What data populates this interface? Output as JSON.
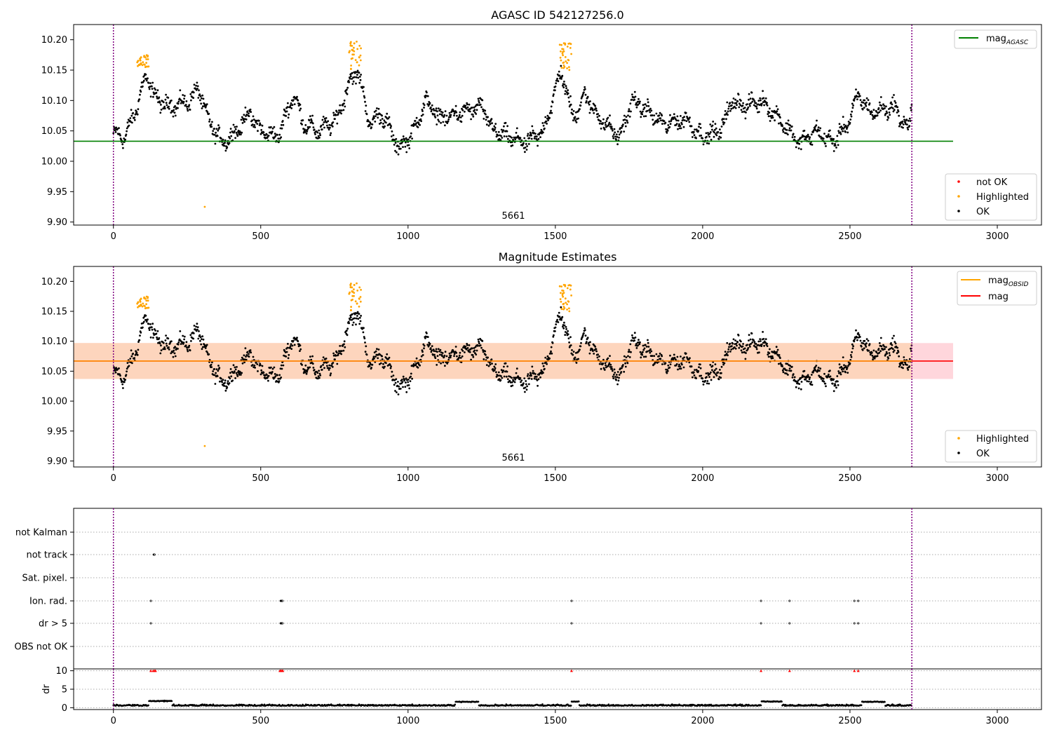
{
  "chart_data": [
    {
      "type": "scatter",
      "title": "AGASC ID 542127256.0",
      "xlim": [
        -135,
        3150
      ],
      "ylim": [
        9.895,
        10.225
      ],
      "xticks": [
        0,
        500,
        1000,
        1500,
        2000,
        2500,
        3000
      ],
      "yticks": [
        9.9,
        9.95,
        10.0,
        10.05,
        10.1,
        10.15,
        10.2
      ],
      "ytick_labels": [
        "9.90",
        "9.95",
        "10.00",
        "10.05",
        "10.10",
        "10.15",
        "10.20"
      ],
      "vlines": [
        0,
        2710
      ],
      "annotation": {
        "text": "5661",
        "x": 1355
      },
      "hline": {
        "name": "mag_AGASC",
        "label_main": "mag",
        "label_sub": "AGASC",
        "y": 10.033,
        "x": [
          -135,
          2850
        ],
        "color": "#008000"
      },
      "legend_lines": [
        {
          "label_main": "mag",
          "label_sub": "AGASC",
          "color": "#008000"
        }
      ],
      "legend_points": [
        {
          "label": "not OK",
          "color": "#ff0000"
        },
        {
          "label": "Highlighted",
          "color": "#ffa500"
        },
        {
          "label": "OK",
          "color": "#000000"
        }
      ],
      "outlier": {
        "x": 310,
        "y": 9.925
      },
      "highlighted_clusters": [
        {
          "x_start": 80,
          "x_end": 120,
          "y_min": 10.155,
          "y_max": 10.175
        },
        {
          "x_start": 800,
          "x_end": 840,
          "y_min": 10.15,
          "y_max": 10.197
        },
        {
          "x_start": 1515,
          "x_end": 1555,
          "y_min": 10.15,
          "y_max": 10.195
        }
      ],
      "series_profile": [
        [
          0,
          10.045
        ],
        [
          40,
          10.04
        ],
        [
          80,
          10.09
        ],
        [
          110,
          10.14
        ],
        [
          150,
          10.1
        ],
        [
          200,
          10.09
        ],
        [
          260,
          10.1
        ],
        [
          290,
          10.12
        ],
        [
          320,
          10.07
        ],
        [
          370,
          10.03
        ],
        [
          420,
          10.05
        ],
        [
          460,
          10.08
        ],
        [
          500,
          10.05
        ],
        [
          560,
          10.04
        ],
        [
          610,
          10.11
        ],
        [
          650,
          10.06
        ],
        [
          700,
          10.05
        ],
        [
          760,
          10.07
        ],
        [
          800,
          10.13
        ],
        [
          830,
          10.15
        ],
        [
          870,
          10.06
        ],
        [
          910,
          10.08
        ],
        [
          970,
          10.02
        ],
        [
          1020,
          10.05
        ],
        [
          1060,
          10.1
        ],
        [
          1110,
          10.07
        ],
        [
          1180,
          10.08
        ],
        [
          1250,
          10.09
        ],
        [
          1290,
          10.05
        ],
        [
          1340,
          10.04
        ],
        [
          1400,
          10.03
        ],
        [
          1460,
          10.05
        ],
        [
          1520,
          10.15
        ],
        [
          1560,
          10.07
        ],
        [
          1600,
          10.11
        ],
        [
          1650,
          10.07
        ],
        [
          1720,
          10.04
        ],
        [
          1760,
          10.1
        ],
        [
          1820,
          10.08
        ],
        [
          1870,
          10.06
        ],
        [
          1940,
          10.07
        ],
        [
          2000,
          10.04
        ],
        [
          2060,
          10.05
        ],
        [
          2100,
          10.1
        ],
        [
          2140,
          10.09
        ],
        [
          2200,
          10.1
        ],
        [
          2260,
          10.07
        ],
        [
          2330,
          10.03
        ],
        [
          2390,
          10.05
        ],
        [
          2440,
          10.03
        ],
        [
          2490,
          10.06
        ],
        [
          2530,
          10.11
        ],
        [
          2570,
          10.08
        ],
        [
          2650,
          10.09
        ],
        [
          2700,
          10.05
        ],
        [
          2710,
          10.1
        ]
      ]
    },
    {
      "type": "scatter",
      "title": "Magnitude Estimates",
      "xlim": [
        -135,
        3150
      ],
      "ylim": [
        9.89,
        10.225
      ],
      "xticks": [
        0,
        500,
        1000,
        1500,
        2000,
        2500,
        3000
      ],
      "yticks": [
        9.9,
        9.95,
        10.0,
        10.05,
        10.1,
        10.15,
        10.2
      ],
      "ytick_labels": [
        "9.90",
        "9.95",
        "10.00",
        "10.05",
        "10.10",
        "10.15",
        "10.20"
      ],
      "vlines": [
        0,
        2710
      ],
      "annotation": {
        "text": "5661",
        "x": 1355
      },
      "mag_line": {
        "y": 10.067,
        "color": "#ff0000"
      },
      "mag_band": {
        "y_min": 10.037,
        "y_max": 10.097,
        "color": "#ffd6dc"
      },
      "obsid_band": {
        "y_min": 10.037,
        "y_max": 10.097,
        "color": "#fdd5bd"
      },
      "legend_lines": [
        {
          "label_main": "mag",
          "label_sub": "OBSID",
          "color": "#ffa500"
        },
        {
          "label_main": "mag",
          "label_sub": "",
          "color": "#ff0000"
        }
      ],
      "legend_points": [
        {
          "label": "Highlighted",
          "color": "#ffa500"
        },
        {
          "label": "OK",
          "color": "#000000"
        }
      ]
    },
    {
      "type": "scatter",
      "title": "",
      "xlim": [
        -135,
        3150
      ],
      "vlines": [
        0,
        2710
      ],
      "flag_rows": [
        "not Kalman",
        "not track",
        "Sat. pixel.",
        "Ion. rad.",
        "dr > 5",
        "OBS not OK"
      ],
      "flag_points": {
        "not track": [
          [
            137,
            140
          ]
        ],
        "Ion. rad.": [
          [
            127,
            127
          ],
          [
            568,
            575
          ],
          [
            1555,
            1555
          ],
          [
            2198,
            2198
          ],
          [
            2295,
            2295
          ],
          [
            2515,
            2515
          ],
          [
            2528,
            2528
          ]
        ],
        "dr > 5": [
          [
            127,
            127
          ],
          [
            568,
            575
          ],
          [
            1555,
            1555
          ],
          [
            2198,
            2198
          ],
          [
            2295,
            2295
          ],
          [
            2515,
            2515
          ],
          [
            2528,
            2528
          ]
        ]
      },
      "dr": {
        "ylabel": "dr",
        "ylim": [
          -0.5,
          10.5
        ],
        "yticks": [
          0,
          5,
          10
        ],
        "ytick_labels": [
          "0",
          "5",
          "10"
        ],
        "xticks": [
          0,
          500,
          1000,
          1500,
          2000,
          2500,
          3000
        ],
        "capped_marks_x": [
          127,
          135,
          140,
          143,
          565,
          568,
          572,
          575,
          1555,
          2198,
          2295,
          2515,
          2528
        ],
        "elevated_segments": [
          [
            120,
            200,
            1.8
          ],
          [
            1160,
            1240,
            1.6
          ],
          [
            1555,
            1580,
            1.7
          ],
          [
            2200,
            2270,
            1.7
          ],
          [
            2540,
            2620,
            1.6
          ]
        ]
      }
    }
  ]
}
